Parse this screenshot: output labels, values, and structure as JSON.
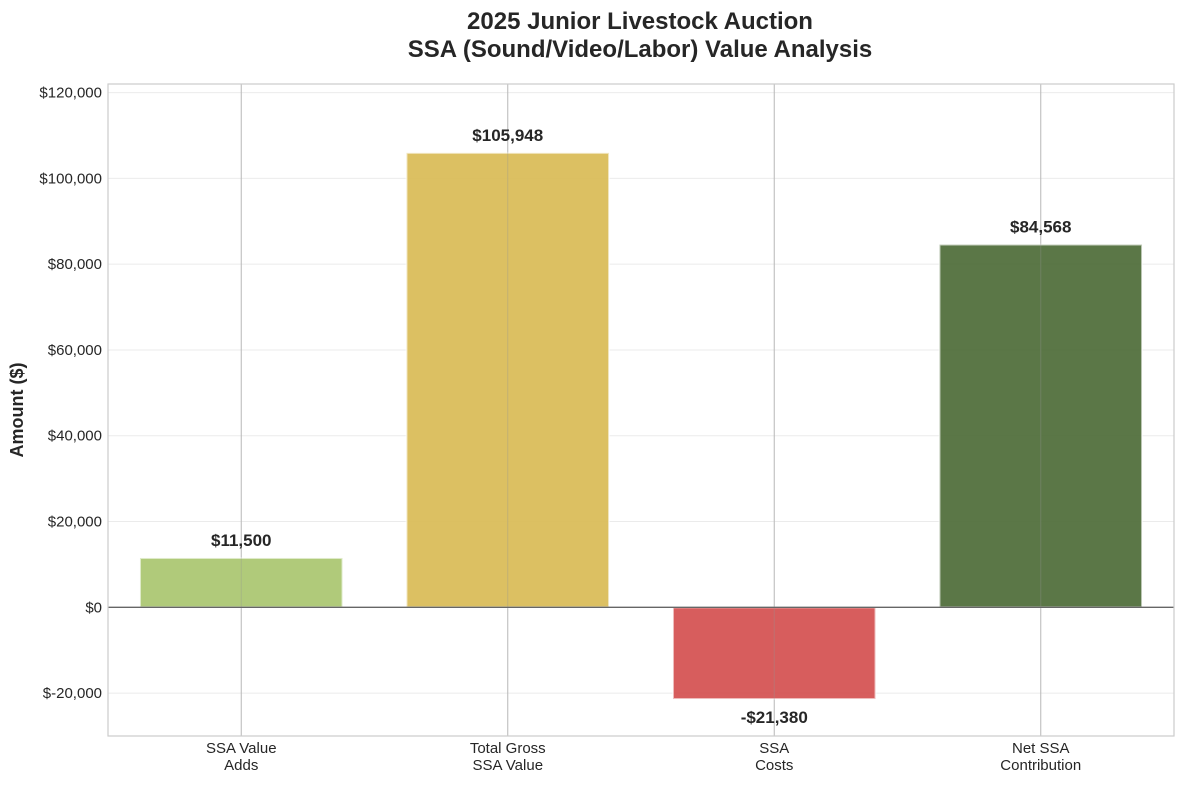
{
  "chart_data": {
    "type": "bar",
    "title_lines": [
      "2025 Junior Livestock Auction",
      "SSA (Sound/Video/Labor) Value Analysis"
    ],
    "ylabel": "Amount ($)",
    "xlabel": "",
    "categories": [
      [
        "SSA Value",
        "Adds"
      ],
      [
        "Total Gross",
        "SSA Value"
      ],
      [
        "SSA",
        "Costs"
      ],
      [
        "Net SSA",
        "Contribution"
      ]
    ],
    "values": [
      11500,
      105948,
      -21380,
      84568
    ],
    "value_labels": [
      "$11,500",
      "$105,948",
      "-$21,380",
      "$84,568"
    ],
    "bar_colors": [
      "#a9c56f",
      "#d9bb55",
      "#d44f4f",
      "#4d6b37"
    ],
    "ylim": [
      -30000,
      122000
    ],
    "y_ticks": [
      -20000,
      0,
      20000,
      40000,
      60000,
      80000,
      100000,
      120000
    ],
    "y_tick_labels": [
      "$-20,000",
      "$0",
      "$20,000",
      "$40,000",
      "$60,000",
      "$80,000",
      "$100,000",
      "$120,000"
    ],
    "grid": true,
    "zero_line": true
  }
}
